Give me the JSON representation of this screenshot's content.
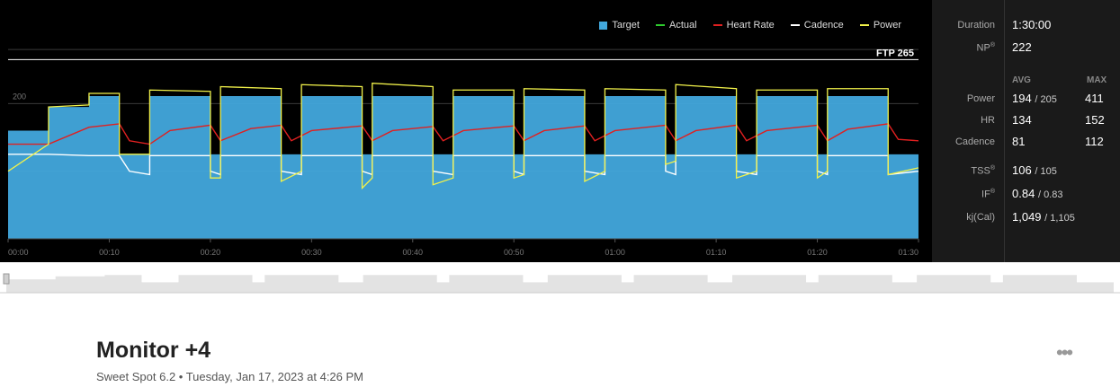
{
  "legend": [
    {
      "label": "Target",
      "color": "#42a8dd",
      "kind": "box"
    },
    {
      "label": "Actual",
      "color": "#2ecc2e",
      "kind": "line"
    },
    {
      "label": "Heart Rate",
      "color": "#e02020",
      "kind": "line"
    },
    {
      "label": "Cadence",
      "color": "#ffffff",
      "kind": "line"
    },
    {
      "label": "Power",
      "color": "#f2f24a",
      "kind": "line"
    }
  ],
  "chart_data": {
    "type": "line",
    "ftp_label": "FTP 265",
    "ftp_value": 265,
    "y_tick_label": "200",
    "y_tick_value": 200,
    "ylim": [
      0,
      300
    ],
    "x_tick_labels": [
      "00:00",
      "00:10",
      "00:20",
      "00:30",
      "00:40",
      "00:50",
      "01:00",
      "01:10",
      "01:20",
      "01:30"
    ],
    "x_range_minutes": [
      0,
      90
    ],
    "series": [
      {
        "name": "Target",
        "kind": "area",
        "color": "#42a8dd",
        "points": [
          [
            0,
            160
          ],
          [
            4,
            160
          ],
          [
            4,
            195
          ],
          [
            8,
            195
          ],
          [
            8,
            211
          ],
          [
            11,
            211
          ],
          [
            11,
            125
          ],
          [
            14,
            125
          ],
          [
            14,
            211
          ],
          [
            20,
            211
          ],
          [
            20,
            125
          ],
          [
            21,
            125
          ],
          [
            21,
            211
          ],
          [
            27,
            211
          ],
          [
            27,
            125
          ],
          [
            29,
            125
          ],
          [
            29,
            211
          ],
          [
            35,
            211
          ],
          [
            35,
            125
          ],
          [
            36,
            125
          ],
          [
            36,
            211
          ],
          [
            42,
            211
          ],
          [
            42,
            125
          ],
          [
            44,
            125
          ],
          [
            44,
            211
          ],
          [
            50,
            211
          ],
          [
            50,
            125
          ],
          [
            51,
            125
          ],
          [
            51,
            211
          ],
          [
            57,
            211
          ],
          [
            57,
            125
          ],
          [
            59,
            125
          ],
          [
            59,
            211
          ],
          [
            65,
            211
          ],
          [
            65,
            125
          ],
          [
            66,
            125
          ],
          [
            66,
            211
          ],
          [
            72,
            211
          ],
          [
            72,
            125
          ],
          [
            74,
            125
          ],
          [
            74,
            211
          ],
          [
            80,
            211
          ],
          [
            80,
            125
          ],
          [
            81,
            125
          ],
          [
            81,
            211
          ],
          [
            87,
            211
          ],
          [
            87,
            125
          ],
          [
            90,
            125
          ]
        ]
      },
      {
        "name": "Heart Rate",
        "kind": "line",
        "color": "#e02020",
        "points": [
          [
            0,
            140
          ],
          [
            4,
            140
          ],
          [
            8,
            165
          ],
          [
            11,
            170
          ],
          [
            12,
            145
          ],
          [
            14,
            140
          ],
          [
            16,
            160
          ],
          [
            20,
            168
          ],
          [
            21,
            145
          ],
          [
            24,
            163
          ],
          [
            27,
            168
          ],
          [
            28,
            145
          ],
          [
            30,
            160
          ],
          [
            35,
            167
          ],
          [
            36,
            145
          ],
          [
            38,
            160
          ],
          [
            42,
            166
          ],
          [
            43,
            145
          ],
          [
            45,
            160
          ],
          [
            50,
            167
          ],
          [
            51,
            145
          ],
          [
            53,
            160
          ],
          [
            57,
            167
          ],
          [
            58,
            145
          ],
          [
            60,
            160
          ],
          [
            65,
            168
          ],
          [
            66,
            145
          ],
          [
            68,
            160
          ],
          [
            72,
            168
          ],
          [
            73,
            145
          ],
          [
            75,
            160
          ],
          [
            80,
            168
          ],
          [
            81,
            145
          ],
          [
            83,
            162
          ],
          [
            87,
            170
          ],
          [
            88,
            147
          ],
          [
            90,
            145
          ]
        ]
      },
      {
        "name": "Cadence",
        "kind": "line",
        "color": "#ffffff",
        "points": [
          [
            0,
            125
          ],
          [
            4,
            125
          ],
          [
            8,
            123
          ],
          [
            11,
            123
          ],
          [
            12,
            100
          ],
          [
            14,
            95
          ],
          [
            14,
            123
          ],
          [
            20,
            123
          ],
          [
            20,
            100
          ],
          [
            21,
            95
          ],
          [
            21,
            123
          ],
          [
            27,
            123
          ],
          [
            27,
            100
          ],
          [
            29,
            95
          ],
          [
            29,
            123
          ],
          [
            35,
            123
          ],
          [
            35,
            100
          ],
          [
            36,
            95
          ],
          [
            36,
            123
          ],
          [
            42,
            123
          ],
          [
            42,
            100
          ],
          [
            44,
            95
          ],
          [
            44,
            123
          ],
          [
            50,
            123
          ],
          [
            50,
            100
          ],
          [
            51,
            95
          ],
          [
            51,
            123
          ],
          [
            57,
            123
          ],
          [
            57,
            100
          ],
          [
            59,
            95
          ],
          [
            59,
            123
          ],
          [
            65,
            123
          ],
          [
            65,
            100
          ],
          [
            66,
            95
          ],
          [
            66,
            123
          ],
          [
            72,
            123
          ],
          [
            72,
            100
          ],
          [
            74,
            95
          ],
          [
            74,
            123
          ],
          [
            80,
            123
          ],
          [
            80,
            100
          ],
          [
            81,
            95
          ],
          [
            81,
            123
          ],
          [
            87,
            123
          ],
          [
            87,
            95
          ],
          [
            90,
            100
          ]
        ]
      },
      {
        "name": "Power",
        "kind": "line",
        "color": "#f2f24a",
        "points": [
          [
            0,
            100
          ],
          [
            4,
            140
          ],
          [
            4,
            195
          ],
          [
            8,
            198
          ],
          [
            8,
            215
          ],
          [
            11,
            215
          ],
          [
            11,
            125
          ],
          [
            14,
            125
          ],
          [
            14,
            220
          ],
          [
            20,
            218
          ],
          [
            20,
            90
          ],
          [
            21,
            90
          ],
          [
            21,
            225
          ],
          [
            27,
            222
          ],
          [
            27,
            85
          ],
          [
            29,
            100
          ],
          [
            29,
            228
          ],
          [
            35,
            225
          ],
          [
            35,
            75
          ],
          [
            36,
            90
          ],
          [
            36,
            230
          ],
          [
            42,
            225
          ],
          [
            42,
            80
          ],
          [
            44,
            90
          ],
          [
            44,
            220
          ],
          [
            50,
            220
          ],
          [
            50,
            90
          ],
          [
            51,
            95
          ],
          [
            51,
            222
          ],
          [
            57,
            220
          ],
          [
            57,
            85
          ],
          [
            59,
            100
          ],
          [
            59,
            222
          ],
          [
            65,
            220
          ],
          [
            65,
            110
          ],
          [
            66,
            115
          ],
          [
            66,
            228
          ],
          [
            72,
            222
          ],
          [
            72,
            90
          ],
          [
            74,
            100
          ],
          [
            74,
            220
          ],
          [
            80,
            220
          ],
          [
            80,
            90
          ],
          [
            81,
            100
          ],
          [
            81,
            222
          ],
          [
            87,
            222
          ],
          [
            87,
            95
          ],
          [
            90,
            105
          ]
        ]
      }
    ]
  },
  "stats": {
    "duration": {
      "label": "Duration",
      "value": "1:30:00"
    },
    "np": {
      "label": "NP",
      "sup": "®",
      "value": "222"
    },
    "avg_head": "AVG",
    "max_head": "MAX",
    "power": {
      "label": "Power",
      "avg": "194",
      "sub": "205",
      "max": "411"
    },
    "hr": {
      "label": "HR",
      "avg": "134",
      "max": "152"
    },
    "cadence": {
      "label": "Cadence",
      "avg": "81",
      "max": "112"
    },
    "tss": {
      "label": "TSS",
      "sup": "®",
      "value": "106",
      "sub": "105"
    },
    "if": {
      "label": "IF",
      "sup": "®",
      "value": "0.84",
      "sub": "0.83"
    },
    "kj": {
      "label": "kj(Cal)",
      "value": "1,049",
      "sub": "1,105"
    }
  },
  "workout": {
    "title": "Monitor +4",
    "subtitle": "Sweet Spot 6.2 • Tuesday, Jan 17, 2023 at 4:26 PM",
    "more_label": "•••"
  }
}
